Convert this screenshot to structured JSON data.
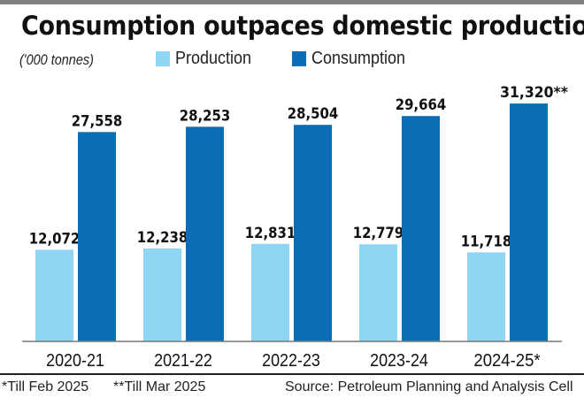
{
  "title": "Consumption outpaces domestic production",
  "unit_note": "('000 tonnes)",
  "colors": {
    "production": "#8fd4f2",
    "consumption": "#0a6db5"
  },
  "footnotes": {
    "left1": "*Till Feb 2025",
    "left2": "**Till Mar 2025",
    "source": "Source: Petroleum Planning and Analysis Cell"
  },
  "chart_data": {
    "type": "bar",
    "title": "Consumption outpaces domestic production",
    "ylabel": "('000 tonnes)",
    "categories": [
      "2020-21",
      "2021-22",
      "2022-23",
      "2023-24",
      "2024-25*"
    ],
    "series": [
      {
        "name": "Production",
        "values": [
          12072,
          12238,
          12831,
          12779,
          11718
        ],
        "labels": [
          "12,072",
          "12,238",
          "12,831",
          "12,779",
          "11,718"
        ]
      },
      {
        "name": "Consumption",
        "values": [
          27558,
          28253,
          28504,
          29664,
          31320
        ],
        "labels": [
          "27,558",
          "28,253",
          "28,504",
          "29,664",
          "31,320**"
        ]
      }
    ],
    "ylim": [
      0,
      31320
    ],
    "grid": false,
    "legend": "top"
  }
}
